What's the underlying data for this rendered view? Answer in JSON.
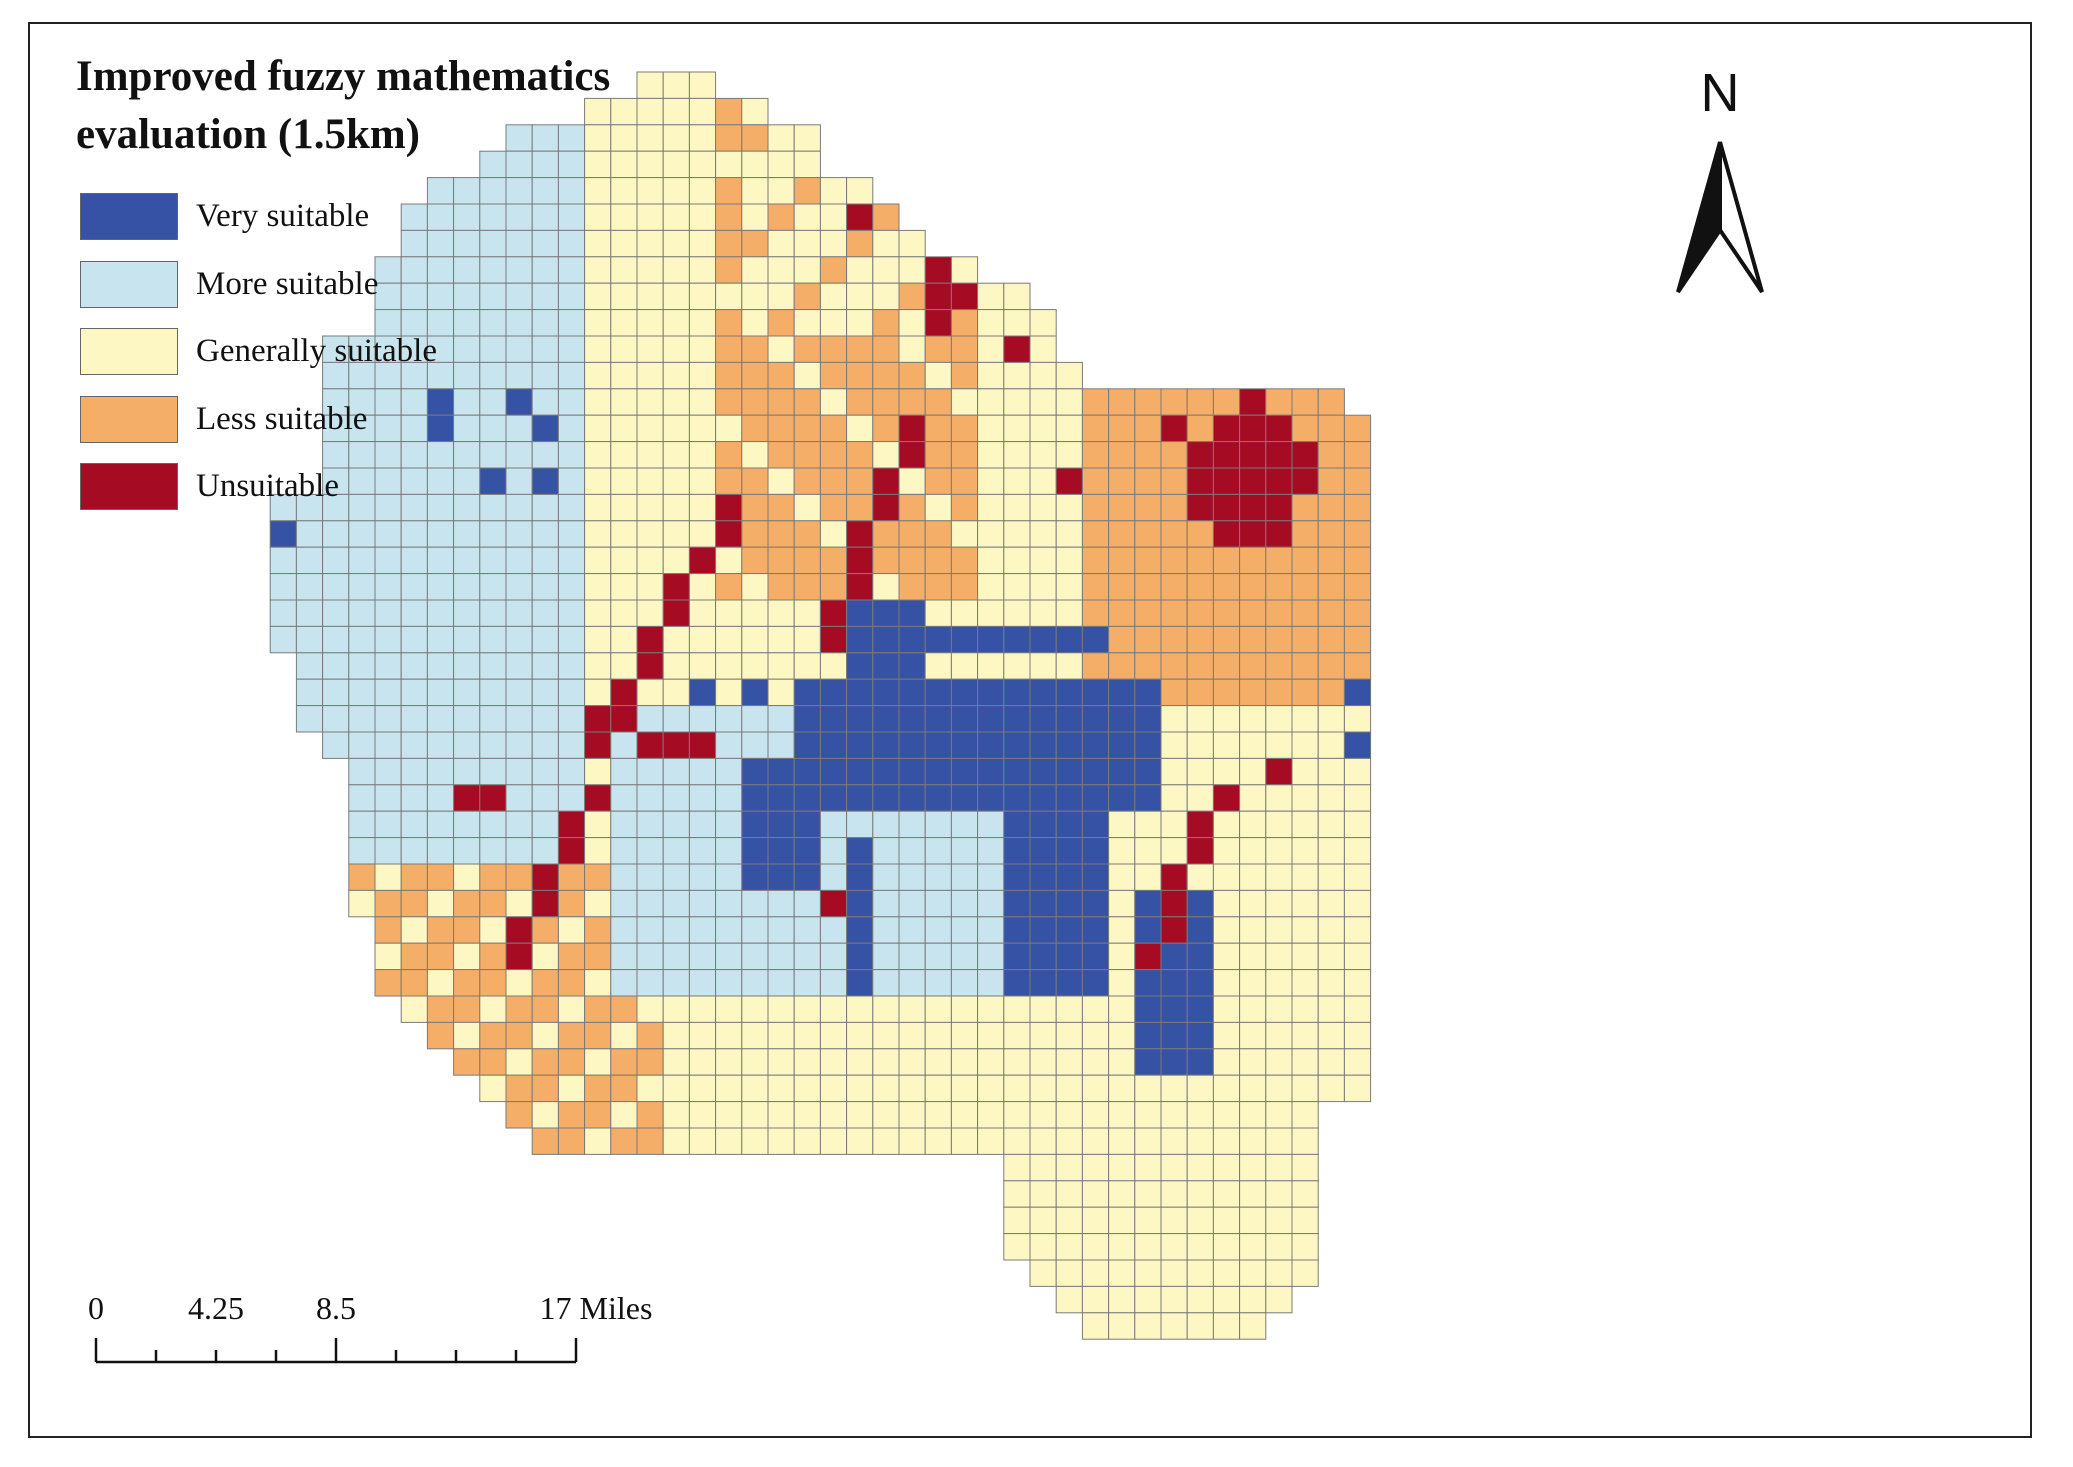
{
  "title_line1": "Improved fuzzy mathematics",
  "title_line2": "evaluation (1.5km)",
  "legend": [
    {
      "label": "Very suitable",
      "color": "#3652a4"
    },
    {
      "label": "More suitable",
      "color": "#c8e5ef"
    },
    {
      "label": "Generally suitable",
      "color": "#fdf8c3"
    },
    {
      "label": "Less suitable",
      "color": "#f5ae67"
    },
    {
      "label": "Unsuitable",
      "color": "#a60b24"
    }
  ],
  "north_label": "N",
  "scale_bar": {
    "ticks": [
      "0",
      "4.25",
      "8.5",
      "17 Miles"
    ]
  },
  "grid_line_color": "#7a7a7a"
}
